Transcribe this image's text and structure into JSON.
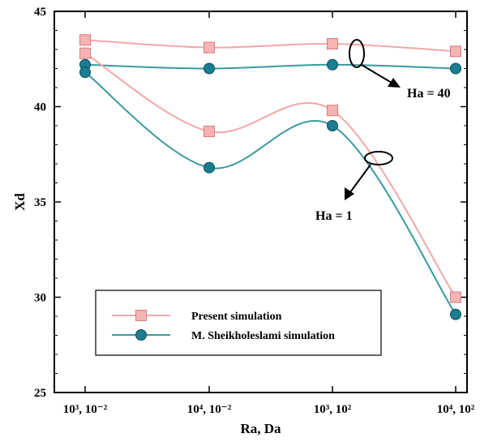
{
  "chart_data": {
    "type": "line",
    "categories": [
      "10³, 10⁻²",
      "10⁴, 10⁻²",
      "10³, 10²",
      "10⁴, 10²"
    ],
    "xlabel": "Ra, Da",
    "ylabel": "Xd",
    "ylim": [
      25,
      45
    ],
    "yticks": [
      25,
      30,
      35,
      40,
      45
    ],
    "legend": {
      "position": "inside-bottom-left"
    },
    "series": [
      {
        "name": "Present simulation",
        "group": "Ha = 40",
        "color": "#f4a6a6",
        "marker": "square",
        "marker_fill": "#f7b3b3",
        "values": [
          43.5,
          43.1,
          43.3,
          42.9
        ]
      },
      {
        "name": "M. Sheikholeslami simulation",
        "group": "Ha = 40",
        "color": "#3a9a9e",
        "marker": "circle",
        "marker_fill": "#1a7d91",
        "values": [
          42.2,
          42.0,
          42.2,
          42.0
        ]
      },
      {
        "name": "Present simulation",
        "group": "Ha = 1",
        "color": "#f4a6a6",
        "marker": "square",
        "marker_fill": "#f7b3b3",
        "values": [
          42.8,
          38.7,
          39.8,
          30.0
        ]
      },
      {
        "name": "M. Sheikholeslami simulation",
        "group": "Ha = 1",
        "color": "#3a9a9e",
        "marker": "circle",
        "marker_fill": "#1a7d91",
        "values": [
          41.8,
          36.8,
          39.0,
          29.1
        ]
      }
    ],
    "annotations": [
      "Ha = 40",
      "Ha = 1"
    ]
  }
}
